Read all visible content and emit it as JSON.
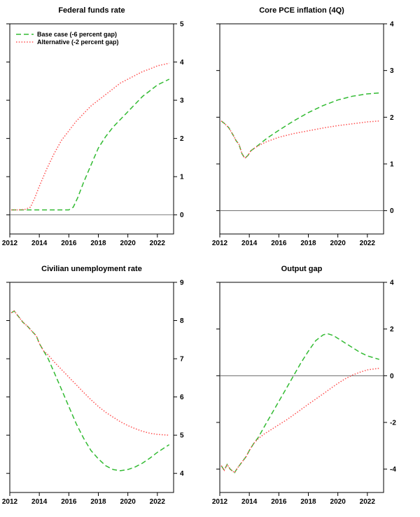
{
  "page": {
    "background": "#ffffff"
  },
  "colors": {
    "base_case": "#33bb33",
    "alternative": "#ff5050",
    "zero_line": "#555555",
    "axis": "#000000"
  },
  "chart_data": [
    {
      "type": "line",
      "title": "Federal funds rate",
      "xlim": [
        2012,
        2023.1
      ],
      "ylim": [
        -0.5,
        5
      ],
      "xticks": [
        2012,
        2014,
        2016,
        2018,
        2020,
        2022
      ],
      "yticks": [
        0,
        1,
        2,
        3,
        4,
        5
      ],
      "zero_line": true,
      "legend": true,
      "legend_position": "top-left",
      "grid": false,
      "series": [
        {
          "id": "base-case",
          "name": "Base case (-6 percent gap)",
          "color": "#33bb33",
          "dash": "7,4",
          "points": [
            [
              2012.1,
              0.13
            ],
            [
              2013,
              0.13
            ],
            [
              2014,
              0.13
            ],
            [
              2015,
              0.13
            ],
            [
              2016,
              0.13
            ],
            [
              2016.3,
              0.2
            ],
            [
              2016.6,
              0.45
            ],
            [
              2017,
              0.85
            ],
            [
              2017.5,
              1.3
            ],
            [
              2018,
              1.75
            ],
            [
              2018.5,
              2.05
            ],
            [
              2019,
              2.3
            ],
            [
              2019.5,
              2.5
            ],
            [
              2020,
              2.7
            ],
            [
              2020.5,
              2.9
            ],
            [
              2021,
              3.1
            ],
            [
              2021.5,
              3.25
            ],
            [
              2022,
              3.4
            ],
            [
              2022.8,
              3.55
            ]
          ]
        },
        {
          "id": "alternative",
          "name": "Alternative (-2 percent gap)",
          "color": "#ff5050",
          "dash": "1.5,2.3",
          "points": [
            [
              2012.1,
              0.13
            ],
            [
              2012.5,
              0.13
            ],
            [
              2013,
              0.14
            ],
            [
              2013.4,
              0.2
            ],
            [
              2013.7,
              0.45
            ],
            [
              2014,
              0.75
            ],
            [
              2014.5,
              1.2
            ],
            [
              2015,
              1.6
            ],
            [
              2015.5,
              1.95
            ],
            [
              2016,
              2.2
            ],
            [
              2016.5,
              2.45
            ],
            [
              2017,
              2.65
            ],
            [
              2017.5,
              2.85
            ],
            [
              2018,
              3.0
            ],
            [
              2018.5,
              3.15
            ],
            [
              2019,
              3.3
            ],
            [
              2019.5,
              3.45
            ],
            [
              2020,
              3.55
            ],
            [
              2020.5,
              3.65
            ],
            [
              2021,
              3.75
            ],
            [
              2021.5,
              3.82
            ],
            [
              2022,
              3.9
            ],
            [
              2022.8,
              3.97
            ]
          ]
        }
      ]
    },
    {
      "type": "line",
      "title": "Core PCE inflation (4Q)",
      "xlim": [
        2012,
        2023.1
      ],
      "ylim": [
        -0.5,
        4
      ],
      "xticks": [
        2012,
        2014,
        2016,
        2018,
        2020,
        2022
      ],
      "yticks": [
        0,
        1,
        2,
        3,
        4
      ],
      "zero_line": true,
      "legend": false,
      "grid": false,
      "series": [
        {
          "id": "base-case",
          "name": "Base case (-6 percent gap)",
          "color": "#33bb33",
          "dash": "7,4",
          "points": [
            [
              2012.1,
              1.92
            ],
            [
              2012.3,
              1.87
            ],
            [
              2012.6,
              1.78
            ],
            [
              2012.9,
              1.62
            ],
            [
              2013.1,
              1.5
            ],
            [
              2013.3,
              1.42
            ],
            [
              2013.5,
              1.22
            ],
            [
              2013.7,
              1.12
            ],
            [
              2013.9,
              1.18
            ],
            [
              2014.1,
              1.28
            ],
            [
              2014.4,
              1.35
            ],
            [
              2014.8,
              1.45
            ],
            [
              2015.2,
              1.55
            ],
            [
              2016,
              1.72
            ],
            [
              2017,
              1.92
            ],
            [
              2018,
              2.1
            ],
            [
              2019,
              2.25
            ],
            [
              2020,
              2.37
            ],
            [
              2021,
              2.45
            ],
            [
              2022,
              2.5
            ],
            [
              2022.8,
              2.52
            ]
          ]
        },
        {
          "id": "alternative",
          "name": "Alternative (-2 percent gap)",
          "color": "#ff5050",
          "dash": "1.5,2.3",
          "points": [
            [
              2012.1,
              1.92
            ],
            [
              2012.3,
              1.87
            ],
            [
              2012.6,
              1.78
            ],
            [
              2012.9,
              1.62
            ],
            [
              2013.1,
              1.5
            ],
            [
              2013.3,
              1.42
            ],
            [
              2013.5,
              1.22
            ],
            [
              2013.7,
              1.12
            ],
            [
              2013.9,
              1.18
            ],
            [
              2014.1,
              1.28
            ],
            [
              2014.4,
              1.35
            ],
            [
              2014.8,
              1.42
            ],
            [
              2015.2,
              1.48
            ],
            [
              2016,
              1.57
            ],
            [
              2017,
              1.65
            ],
            [
              2018,
              1.71
            ],
            [
              2019,
              1.77
            ],
            [
              2020,
              1.82
            ],
            [
              2021,
              1.86
            ],
            [
              2022,
              1.9
            ],
            [
              2022.8,
              1.92
            ]
          ]
        }
      ]
    },
    {
      "type": "line",
      "title": "Civilian unemployment rate",
      "xlim": [
        2012,
        2023.1
      ],
      "ylim": [
        3.5,
        9
      ],
      "xticks": [
        2012,
        2014,
        2016,
        2018,
        2020,
        2022
      ],
      "yticks": [
        4,
        5,
        6,
        7,
        8,
        9
      ],
      "zero_line": false,
      "legend": false,
      "grid": false,
      "series": [
        {
          "id": "base-case",
          "name": "Base case (-6 percent gap)",
          "color": "#33bb33",
          "dash": "7,4",
          "points": [
            [
              2012.1,
              8.2
            ],
            [
              2012.3,
              8.25
            ],
            [
              2012.6,
              8.1
            ],
            [
              2012.9,
              7.95
            ],
            [
              2013.2,
              7.85
            ],
            [
              2013.5,
              7.72
            ],
            [
              2013.8,
              7.6
            ],
            [
              2014,
              7.4
            ],
            [
              2014.3,
              7.2
            ],
            [
              2014.6,
              7.0
            ],
            [
              2015,
              6.65
            ],
            [
              2015.5,
              6.2
            ],
            [
              2016,
              5.75
            ],
            [
              2016.5,
              5.3
            ],
            [
              2017,
              4.92
            ],
            [
              2017.5,
              4.6
            ],
            [
              2018,
              4.38
            ],
            [
              2018.5,
              4.2
            ],
            [
              2019,
              4.1
            ],
            [
              2019.5,
              4.07
            ],
            [
              2020,
              4.1
            ],
            [
              2020.5,
              4.17
            ],
            [
              2021,
              4.27
            ],
            [
              2021.5,
              4.4
            ],
            [
              2022,
              4.55
            ],
            [
              2022.8,
              4.75
            ]
          ]
        },
        {
          "id": "alternative",
          "name": "Alternative (-2 percent gap)",
          "color": "#ff5050",
          "dash": "1.5,2.3",
          "points": [
            [
              2012.1,
              8.2
            ],
            [
              2012.3,
              8.25
            ],
            [
              2012.6,
              8.1
            ],
            [
              2012.9,
              7.95
            ],
            [
              2013.2,
              7.85
            ],
            [
              2013.5,
              7.72
            ],
            [
              2013.8,
              7.6
            ],
            [
              2014,
              7.4
            ],
            [
              2014.3,
              7.2
            ],
            [
              2014.6,
              7.1
            ],
            [
              2015,
              6.92
            ],
            [
              2015.5,
              6.72
            ],
            [
              2016,
              6.52
            ],
            [
              2016.5,
              6.32
            ],
            [
              2017,
              6.12
            ],
            [
              2017.5,
              5.93
            ],
            [
              2018,
              5.75
            ],
            [
              2018.5,
              5.6
            ],
            [
              2019,
              5.47
            ],
            [
              2019.5,
              5.35
            ],
            [
              2020,
              5.25
            ],
            [
              2020.5,
              5.17
            ],
            [
              2021,
              5.1
            ],
            [
              2021.5,
              5.05
            ],
            [
              2022,
              5.02
            ],
            [
              2022.8,
              5.0
            ]
          ]
        }
      ]
    },
    {
      "type": "line",
      "title": "Output gap",
      "xlim": [
        2012,
        2023.1
      ],
      "ylim": [
        -5,
        4
      ],
      "xticks": [
        2012,
        2014,
        2016,
        2018,
        2020,
        2022
      ],
      "yticks": [
        -4,
        -2,
        0,
        2,
        4
      ],
      "zero_line": true,
      "legend": false,
      "grid": false,
      "series": [
        {
          "id": "base-case",
          "name": "Base case (-6 percent gap)",
          "color": "#33bb33",
          "dash": "7,4",
          "points": [
            [
              2012.1,
              -3.85
            ],
            [
              2012.3,
              -4.05
            ],
            [
              2012.5,
              -3.8
            ],
            [
              2012.7,
              -4.0
            ],
            [
              2013,
              -4.15
            ],
            [
              2013.2,
              -3.95
            ],
            [
              2013.5,
              -3.7
            ],
            [
              2013.8,
              -3.45
            ],
            [
              2014,
              -3.2
            ],
            [
              2014.3,
              -2.9
            ],
            [
              2014.6,
              -2.65
            ],
            [
              2015,
              -2.2
            ],
            [
              2015.5,
              -1.65
            ],
            [
              2016,
              -1.1
            ],
            [
              2016.5,
              -0.55
            ],
            [
              2017,
              0.0
            ],
            [
              2017.5,
              0.55
            ],
            [
              2018,
              1.05
            ],
            [
              2018.5,
              1.5
            ],
            [
              2019,
              1.75
            ],
            [
              2019.3,
              1.8
            ],
            [
              2019.7,
              1.72
            ],
            [
              2020,
              1.6
            ],
            [
              2020.5,
              1.4
            ],
            [
              2021,
              1.2
            ],
            [
              2021.5,
              1.0
            ],
            [
              2022,
              0.85
            ],
            [
              2022.8,
              0.7
            ]
          ]
        },
        {
          "id": "alternative",
          "name": "Alternative (-2 percent gap)",
          "color": "#ff5050",
          "dash": "1.5,2.3",
          "points": [
            [
              2012.1,
              -3.85
            ],
            [
              2012.3,
              -4.05
            ],
            [
              2012.5,
              -3.8
            ],
            [
              2012.7,
              -4.0
            ],
            [
              2013,
              -4.15
            ],
            [
              2013.2,
              -3.95
            ],
            [
              2013.5,
              -3.7
            ],
            [
              2013.8,
              -3.45
            ],
            [
              2014,
              -3.2
            ],
            [
              2014.3,
              -2.9
            ],
            [
              2014.6,
              -2.7
            ],
            [
              2015,
              -2.5
            ],
            [
              2015.5,
              -2.3
            ],
            [
              2016,
              -2.1
            ],
            [
              2016.5,
              -1.9
            ],
            [
              2017,
              -1.68
            ],
            [
              2017.5,
              -1.45
            ],
            [
              2018,
              -1.22
            ],
            [
              2018.5,
              -1.0
            ],
            [
              2019,
              -0.78
            ],
            [
              2019.5,
              -0.55
            ],
            [
              2020,
              -0.33
            ],
            [
              2020.5,
              -0.13
            ],
            [
              2021,
              0.03
            ],
            [
              2021.5,
              0.15
            ],
            [
              2022,
              0.25
            ],
            [
              2022.8,
              0.32
            ]
          ]
        }
      ]
    }
  ]
}
